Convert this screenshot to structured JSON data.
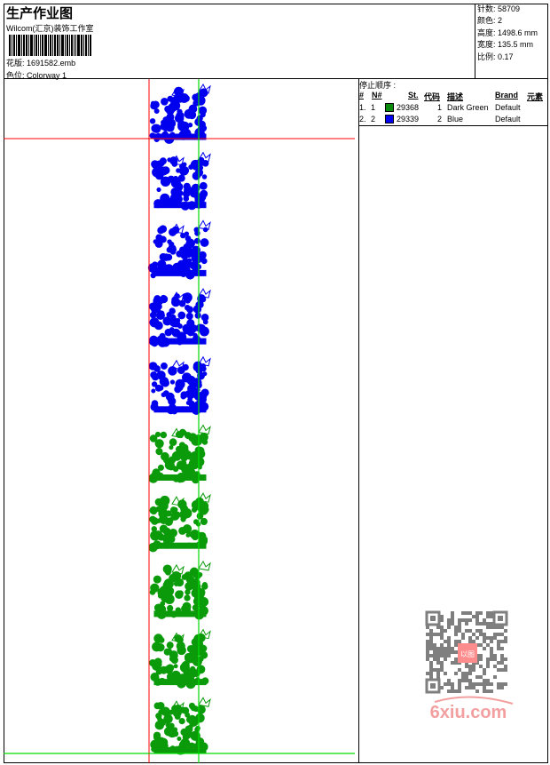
{
  "header": {
    "title": "生产作业图",
    "company": "Wilcom(汇京)装饰工作室",
    "design_label": "花版:",
    "design_value": "1691582.emb",
    "colorway_label": "色位:",
    "colorway_value": "Colorway 1"
  },
  "info": [
    {
      "label": "针数:",
      "value": "58709"
    },
    {
      "label": "颜色:",
      "value": "2"
    },
    {
      "label": "高度:",
      "value": "1498.6 mm"
    },
    {
      "label": "宽度:",
      "value": "135.5 mm"
    },
    {
      "label": "比例:",
      "value": "0.17"
    }
  ],
  "stop_sequence": {
    "title": "停止顺序 :",
    "columns": [
      "#",
      "N#",
      "St.",
      "代码",
      "描述",
      "Brand",
      "元素"
    ],
    "rows": [
      {
        "num": "1.",
        "n": "1",
        "color": "#0a8a0a",
        "st": "29368",
        "code": "1",
        "desc": "Dark Green",
        "brand": "Default"
      },
      {
        "num": "2.",
        "n": "2",
        "color": "#0000ee",
        "st": "29339",
        "code": "2",
        "desc": "Blue",
        "brand": "Default"
      }
    ]
  },
  "preview": {
    "motif_colors": [
      "#0000ee",
      "#0000ee",
      "#0000ee",
      "#0000ee",
      "#0000ee",
      "#0a9a0a",
      "#0a9a0a",
      "#0a9a0a",
      "#0a9a0a",
      "#0a9a0a"
    ],
    "guide_red": "#ff0000",
    "guide_green": "#00dd00"
  },
  "watermark": {
    "text": "6xiu.com",
    "seal": "以图搜图"
  }
}
